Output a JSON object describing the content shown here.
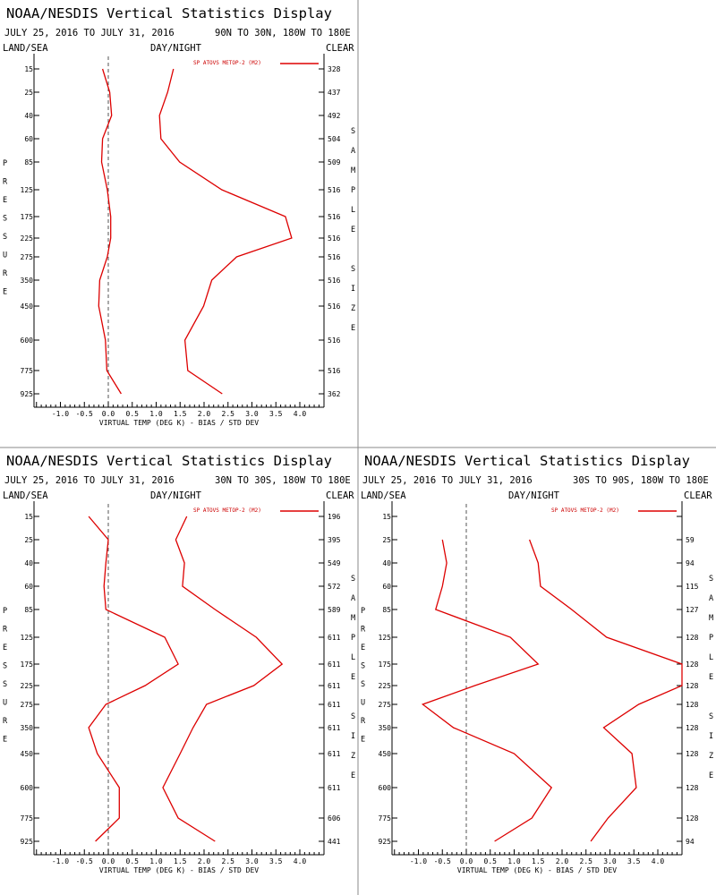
{
  "colors": {
    "series": "#dd0000",
    "axis": "#000000",
    "divider": "#888888",
    "zero_line": "#555555"
  },
  "chart_data": [
    {
      "type": "line",
      "title": "NOAA/NESDIS Vertical Statistics Display",
      "date_range": "JULY 25, 2016 TO JULY 31, 2016",
      "region": "90N TO 30N, 180W TO 180E",
      "left_label": "LAND/SEA",
      "center_label": "DAY/NIGHT",
      "right_label": "CLEAR",
      "ylabel": "PRESSURE",
      "y2label": "SAMPLE SIZE",
      "xlabel": "VIRTUAL TEMP (DEG K) - BIAS / STD DEV",
      "legend": "SP ATOVS METOP-2 (M2)",
      "xlim": [
        -1.5,
        4.5
      ],
      "x_ticks": [
        "-1.0",
        "-0.5",
        "0.0",
        "0.5",
        "1.0",
        "1.5",
        "2.0",
        "2.5",
        "3.0",
        "3.5",
        "4.0"
      ],
      "pressure_levels": [
        "15",
        "25",
        "40",
        "60",
        "85",
        "125",
        "175",
        "225",
        "275",
        "350",
        "450",
        "600",
        "775",
        "925"
      ],
      "sample_size": [
        "328",
        "437",
        "492",
        "504",
        "509",
        "516",
        "516",
        "516",
        "516",
        "516",
        "516",
        "516",
        "516",
        "362"
      ],
      "series": [
        {
          "kind": "bias",
          "values": [
            -0.12,
            0.03,
            0.07,
            -0.12,
            -0.14,
            -0.02,
            0.05,
            0.05,
            -0.02,
            -0.18,
            -0.2,
            -0.06,
            -0.03,
            0.27
          ]
        },
        {
          "kind": "std_dev",
          "values": [
            1.36,
            1.24,
            1.07,
            1.1,
            1.49,
            2.37,
            3.7,
            3.83,
            2.68,
            2.16,
            1.99,
            1.6,
            1.66,
            2.38
          ]
        }
      ]
    },
    {
      "type": "line",
      "title": "NOAA/NESDIS Vertical Statistics Display",
      "date_range": "JULY 25, 2016 TO JULY 31, 2016",
      "region": "30N TO 30S, 180W TO 180E",
      "left_label": "LAND/SEA",
      "center_label": "DAY/NIGHT",
      "right_label": "CLEAR",
      "ylabel": "PRESSURE",
      "y2label": "SAMPLE SIZE",
      "xlabel": "VIRTUAL TEMP (DEG K) - BIAS / STD DEV",
      "legend": "SP ATOVS METOP-2 (M2)",
      "xlim": [
        -1.5,
        4.5
      ],
      "x_ticks": [
        "-1.0",
        "-0.5",
        "0.0",
        "0.5",
        "1.0",
        "1.5",
        "2.0",
        "2.5",
        "3.0",
        "3.5",
        "4.0"
      ],
      "pressure_levels": [
        "15",
        "25",
        "40",
        "60",
        "85",
        "125",
        "175",
        "225",
        "275",
        "350",
        "450",
        "600",
        "775",
        "925"
      ],
      "sample_size": [
        "196",
        "395",
        "549",
        "572",
        "589",
        "611",
        "611",
        "611",
        "611",
        "611",
        "611",
        "611",
        "606",
        "441"
      ],
      "series": [
        {
          "kind": "bias",
          "values": [
            -0.41,
            0.0,
            -0.05,
            -0.09,
            -0.05,
            1.18,
            1.46,
            0.77,
            -0.05,
            -0.41,
            -0.23,
            0.23,
            0.23,
            -0.27
          ]
        },
        {
          "kind": "std_dev",
          "values": [
            1.64,
            1.41,
            1.59,
            1.55,
            2.23,
            3.09,
            3.63,
            3.04,
            2.05,
            1.77,
            1.5,
            1.14,
            1.46,
            2.23
          ]
        }
      ]
    },
    {
      "type": "line",
      "title": "NOAA/NESDIS Vertical Statistics Display",
      "date_range": "JULY 25, 2016 TO JULY 31, 2016",
      "region": "30S TO 90S, 180W TO 180E",
      "left_label": "LAND/SEA",
      "center_label": "DAY/NIGHT",
      "right_label": "CLEAR",
      "ylabel": "PRESSURE",
      "y2label": "SAMPLE SIZE",
      "xlabel": "VIRTUAL TEMP (DEG K) - BIAS / STD DEV",
      "legend": "SP ATOVS METOP-2 (M2)",
      "xlim": [
        -1.5,
        4.5
      ],
      "x_ticks": [
        "-1.0",
        "-0.5",
        "0.0",
        "0.5",
        "1.0",
        "1.5",
        "2.0",
        "2.5",
        "3.0",
        "3.5",
        "4.0"
      ],
      "pressure_levels": [
        "15",
        "25",
        "40",
        "60",
        "85",
        "125",
        "175",
        "225",
        "275",
        "350",
        "450",
        "600",
        "775",
        "925"
      ],
      "sample_size": [
        "",
        "59",
        "94",
        "115",
        "127",
        "128",
        "128",
        "128",
        "128",
        "128",
        "128",
        "128",
        "128",
        "94"
      ],
      "series": [
        {
          "kind": "bias",
          "values": [
            null,
            -0.5,
            -0.41,
            -0.5,
            -0.64,
            0.92,
            1.5,
            0.18,
            -0.91,
            -0.27,
            1.0,
            1.78,
            1.37,
            0.59
          ]
        },
        {
          "kind": "std_dev",
          "values": [
            null,
            1.32,
            1.5,
            1.55,
            2.2,
            2.93,
            4.6,
            4.6,
            3.6,
            2.87,
            3.46,
            3.55,
            2.96,
            2.6
          ]
        }
      ]
    }
  ]
}
